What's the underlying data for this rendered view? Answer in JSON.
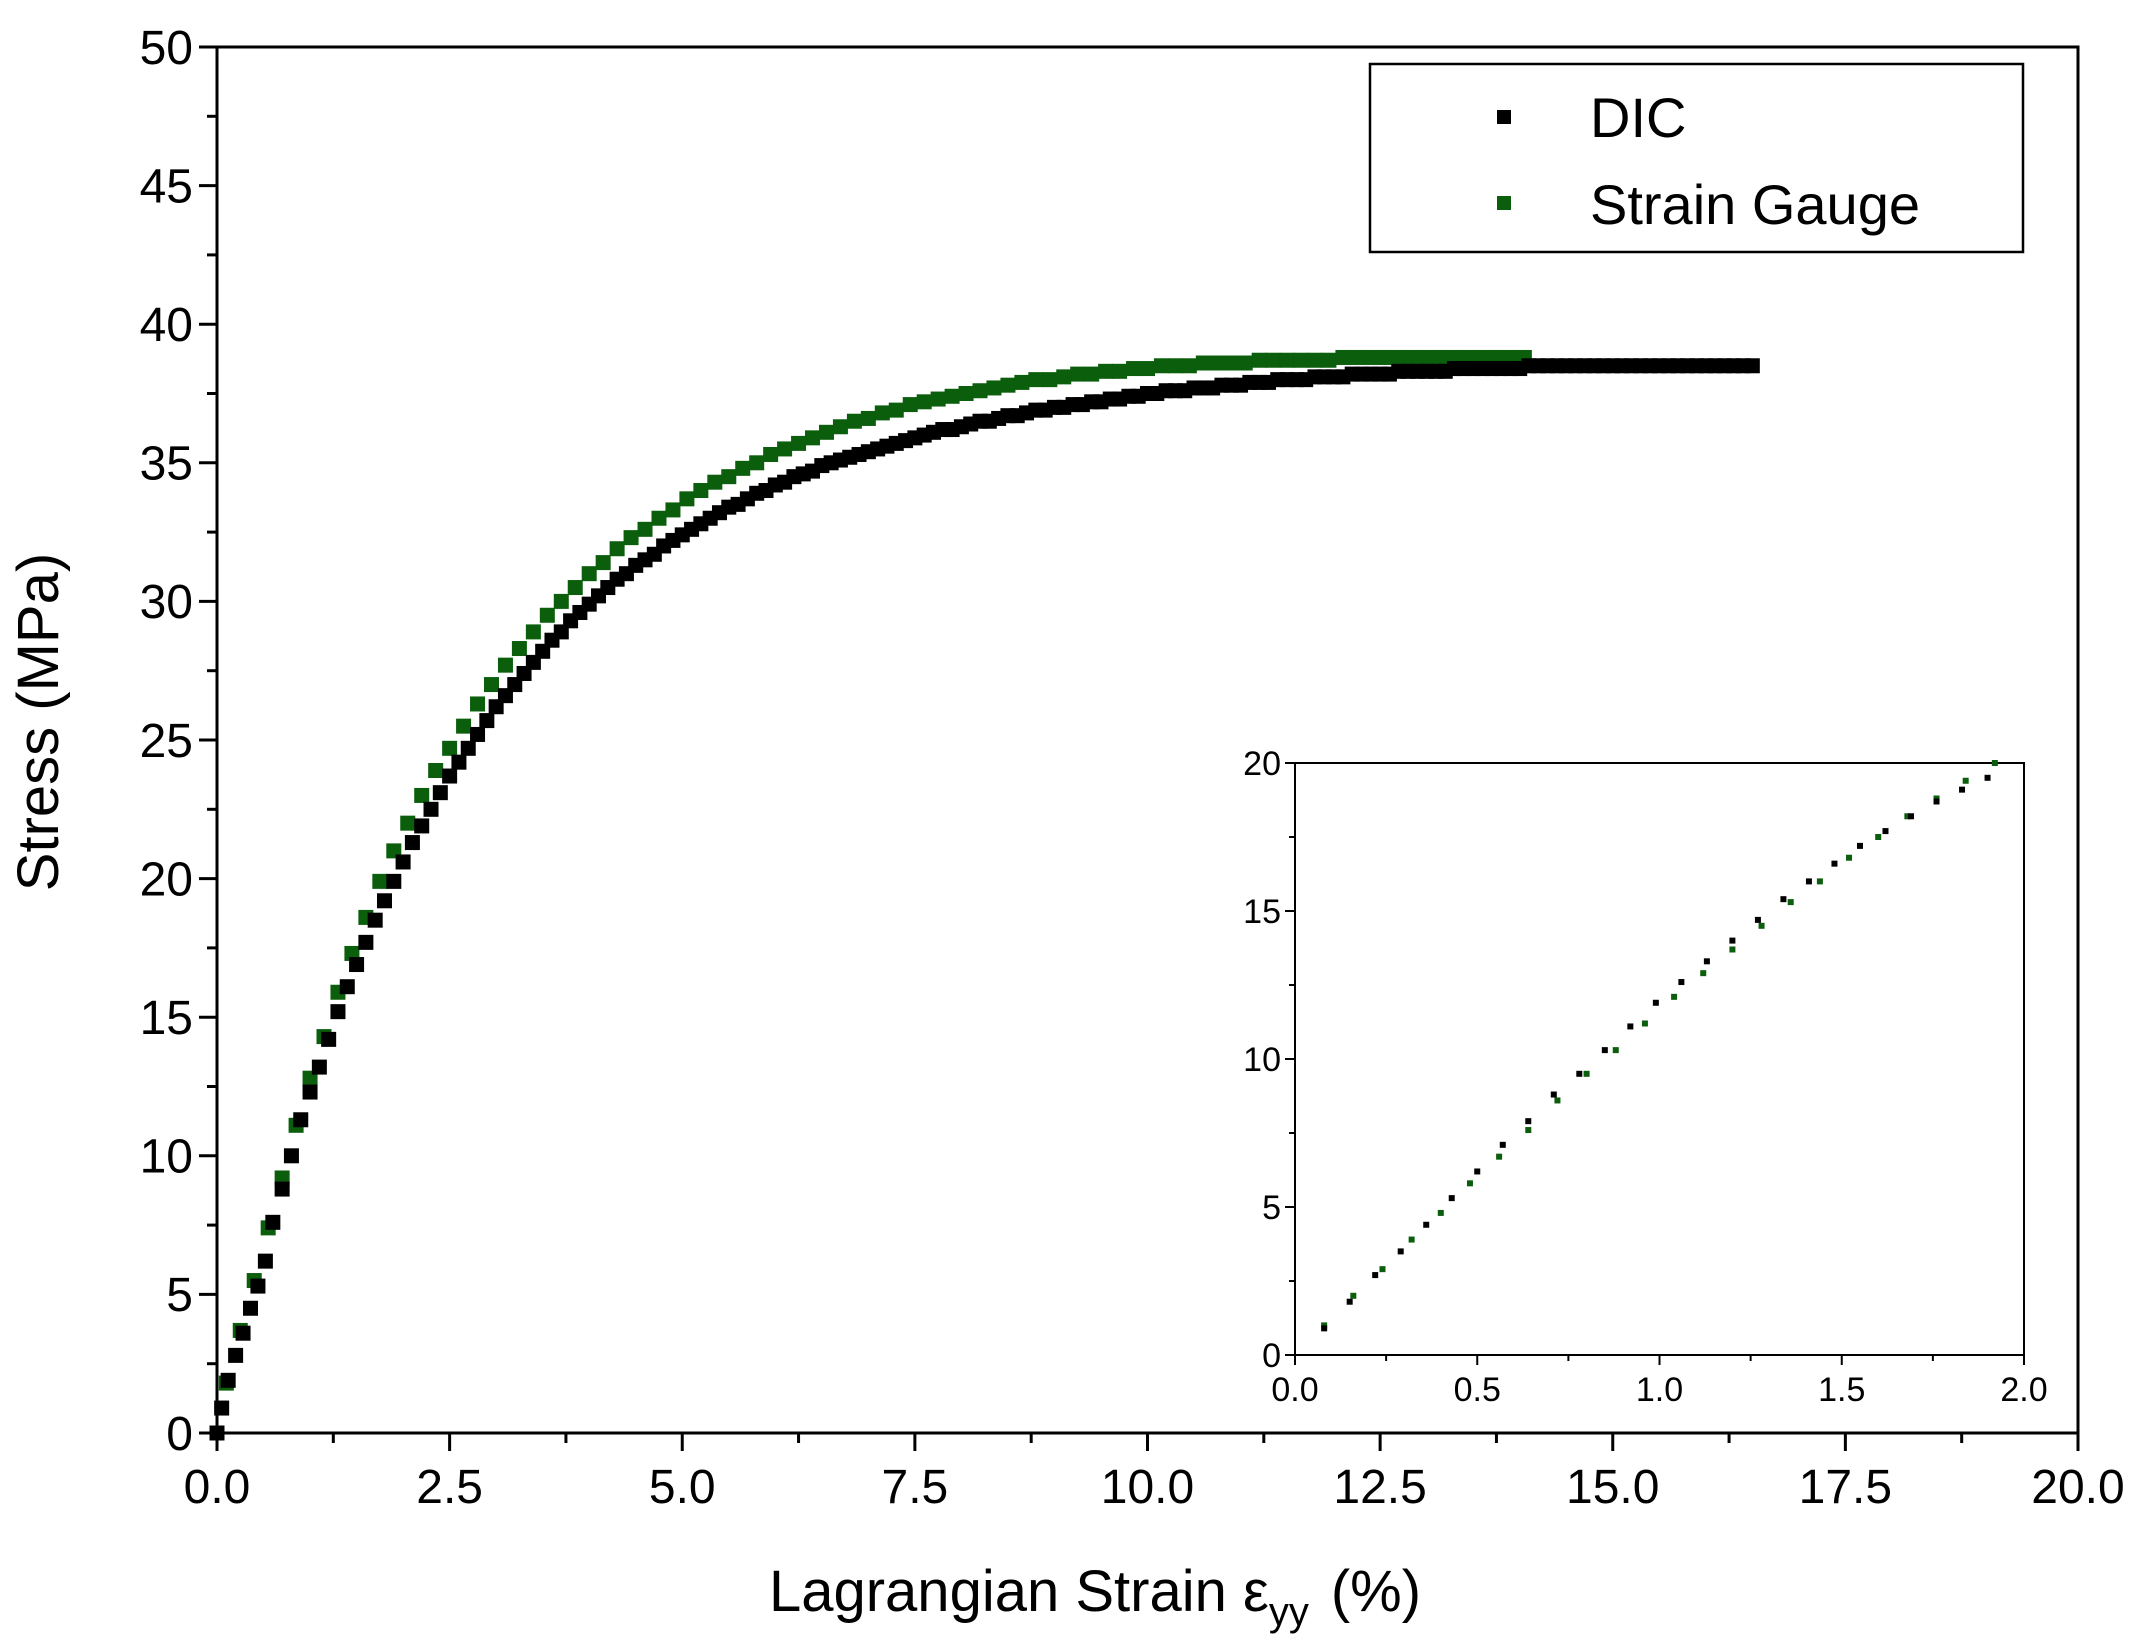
{
  "chart_data": {
    "type": "scatter",
    "xlabel": "Lagrangian Strain ε",
    "xlabel_subscript": "yy",
    "xlabel_unit": "(%)",
    "ylabel": "Stress (MPa)",
    "xlim": [
      0,
      20
    ],
    "ylim": [
      0,
      50
    ],
    "x_ticks": [
      "0.0",
      "2.5",
      "5.0",
      "7.5",
      "10.0",
      "12.5",
      "15.0",
      "17.5",
      "20.0"
    ],
    "y_ticks": [
      "0",
      "5",
      "10",
      "15",
      "20",
      "25",
      "30",
      "35",
      "40",
      "45",
      "50"
    ],
    "grid": false,
    "legend_placement": "top-right",
    "series": [
      {
        "name": "DIC",
        "color": "#000000",
        "x": [
          0.0,
          0.05,
          0.12,
          0.2,
          0.28,
          0.36,
          0.44,
          0.52,
          0.6,
          0.7,
          0.8,
          0.9,
          1.0,
          1.1,
          1.2,
          1.3,
          1.4,
          1.5,
          1.6,
          1.7,
          1.8,
          1.9,
          2.0,
          2.1,
          2.2,
          2.3,
          2.4,
          2.5,
          2.6,
          2.7,
          2.8,
          2.9,
          3.0,
          3.1,
          3.2,
          3.3,
          3.4,
          3.5,
          3.6,
          3.7,
          3.8,
          3.9,
          4.0,
          4.1,
          4.2,
          4.3,
          4.4,
          4.5,
          4.6,
          4.7,
          4.8,
          4.9,
          5.0,
          5.1,
          5.2,
          5.3,
          5.4,
          5.5,
          5.6,
          5.7,
          5.8,
          5.9,
          6.0,
          6.1,
          6.2,
          6.3,
          6.4,
          6.5,
          6.6,
          6.7,
          6.8,
          6.9,
          7.0,
          7.1,
          7.2,
          7.3,
          7.4,
          7.5,
          7.6,
          7.7,
          7.8,
          7.9,
          8.0,
          8.1,
          8.2,
          8.3,
          8.4,
          8.5,
          8.6,
          8.7,
          8.8,
          8.9,
          9.0,
          9.1,
          9.2,
          9.3,
          9.4,
          9.5,
          9.6,
          9.7,
          9.8,
          9.9,
          10.0,
          10.1,
          10.2,
          10.3,
          10.4,
          10.5,
          10.6,
          10.7,
          10.8,
          10.9,
          11.0,
          11.1,
          11.2,
          11.3,
          11.4,
          11.5,
          11.6,
          11.7,
          11.8,
          11.9,
          12.0,
          12.1,
          12.2,
          12.3,
          12.4,
          12.5,
          12.6,
          12.7,
          12.8,
          12.9,
          13.0,
          13.1,
          13.2,
          13.3,
          13.4,
          13.5,
          13.6,
          13.7,
          13.8,
          13.9,
          14.0,
          14.1,
          14.2,
          14.3,
          14.4,
          14.5,
          14.6,
          14.7,
          14.8,
          14.9,
          15.0,
          15.1,
          15.2,
          15.3,
          15.4,
          15.5,
          15.6,
          15.7,
          15.8,
          15.9,
          16.0,
          16.1,
          16.2,
          16.3,
          16.4,
          16.5
        ],
        "y": [
          0.0,
          0.9,
          1.9,
          2.8,
          3.6,
          4.5,
          5.3,
          6.2,
          7.6,
          8.8,
          10.0,
          11.3,
          12.3,
          13.2,
          14.2,
          15.2,
          16.1,
          16.9,
          17.7,
          18.5,
          19.2,
          19.9,
          20.6,
          21.3,
          21.9,
          22.5,
          23.1,
          23.7,
          24.2,
          24.7,
          25.2,
          25.7,
          26.2,
          26.6,
          27.0,
          27.4,
          27.8,
          28.2,
          28.6,
          28.9,
          29.3,
          29.6,
          29.9,
          30.2,
          30.5,
          30.8,
          31.0,
          31.3,
          31.5,
          31.7,
          32.0,
          32.2,
          32.4,
          32.6,
          32.8,
          33.0,
          33.2,
          33.4,
          33.5,
          33.7,
          33.9,
          34.0,
          34.2,
          34.3,
          34.5,
          34.6,
          34.7,
          34.9,
          35.0,
          35.1,
          35.2,
          35.3,
          35.4,
          35.5,
          35.6,
          35.7,
          35.8,
          35.9,
          36.0,
          36.1,
          36.2,
          36.2,
          36.3,
          36.4,
          36.5,
          36.5,
          36.6,
          36.7,
          36.7,
          36.8,
          36.9,
          36.9,
          37.0,
          37.0,
          37.1,
          37.1,
          37.2,
          37.2,
          37.3,
          37.3,
          37.4,
          37.4,
          37.5,
          37.5,
          37.6,
          37.6,
          37.6,
          37.7,
          37.7,
          37.7,
          37.8,
          37.8,
          37.8,
          37.9,
          37.9,
          37.9,
          38.0,
          38.0,
          38.0,
          38.0,
          38.1,
          38.1,
          38.1,
          38.1,
          38.2,
          38.2,
          38.2,
          38.2,
          38.2,
          38.3,
          38.3,
          38.3,
          38.3,
          38.3,
          38.3,
          38.4,
          38.4,
          38.4,
          38.4,
          38.4,
          38.4,
          38.4,
          38.4,
          38.5,
          38.5,
          38.5,
          38.5,
          38.5,
          38.5,
          38.5,
          38.5,
          38.5,
          38.5,
          38.5,
          38.5,
          38.5,
          38.5,
          38.5,
          38.5,
          38.5,
          38.5,
          38.5,
          38.5,
          38.5,
          38.5,
          38.5,
          38.5,
          38.5
        ]
      },
      {
        "name": "Strain Gauge",
        "color": "#0b5e0b",
        "x": [
          0.0,
          0.1,
          0.25,
          0.4,
          0.55,
          0.7,
          0.85,
          1.0,
          1.15,
          1.3,
          1.45,
          1.6,
          1.75,
          1.9,
          2.05,
          2.2,
          2.35,
          2.5,
          2.65,
          2.8,
          2.95,
          3.1,
          3.25,
          3.4,
          3.55,
          3.7,
          3.85,
          4.0,
          4.15,
          4.3,
          4.45,
          4.6,
          4.75,
          4.9,
          5.05,
          5.2,
          5.35,
          5.5,
          5.65,
          5.8,
          5.95,
          6.1,
          6.25,
          6.4,
          6.55,
          6.7,
          6.85,
          7.0,
          7.15,
          7.3,
          7.45,
          7.6,
          7.75,
          7.9,
          8.05,
          8.2,
          8.35,
          8.5,
          8.65,
          8.8,
          8.95,
          9.1,
          9.25,
          9.4,
          9.55,
          9.7,
          9.85,
          10.0,
          10.15,
          10.3,
          10.45,
          10.6,
          10.75,
          10.9,
          11.05,
          11.2,
          11.35,
          11.5,
          11.65,
          11.8,
          11.95,
          12.1,
          12.25,
          12.4,
          12.55,
          12.7,
          12.85,
          13.0,
          13.15,
          13.3,
          13.45,
          13.6,
          13.75,
          13.9,
          14.05
        ],
        "y": [
          0.0,
          1.8,
          3.7,
          5.5,
          7.4,
          9.2,
          11.1,
          12.8,
          14.3,
          15.9,
          17.3,
          18.6,
          19.9,
          21.0,
          22.0,
          23.0,
          23.9,
          24.7,
          25.5,
          26.3,
          27.0,
          27.7,
          28.3,
          28.9,
          29.5,
          30.0,
          30.5,
          31.0,
          31.4,
          31.9,
          32.3,
          32.6,
          33.0,
          33.3,
          33.7,
          34.0,
          34.3,
          34.5,
          34.8,
          35.0,
          35.3,
          35.5,
          35.7,
          35.9,
          36.1,
          36.3,
          36.5,
          36.6,
          36.8,
          36.9,
          37.1,
          37.2,
          37.3,
          37.4,
          37.5,
          37.6,
          37.7,
          37.8,
          37.9,
          38.0,
          38.0,
          38.1,
          38.2,
          38.2,
          38.3,
          38.3,
          38.4,
          38.4,
          38.5,
          38.5,
          38.5,
          38.6,
          38.6,
          38.6,
          38.6,
          38.7,
          38.7,
          38.7,
          38.7,
          38.7,
          38.7,
          38.8,
          38.8,
          38.8,
          38.8,
          38.8,
          38.8,
          38.8,
          38.8,
          38.8,
          38.8,
          38.8,
          38.8,
          38.8,
          38.8
        ]
      }
    ],
    "inset": {
      "xlim": [
        0,
        2.0
      ],
      "ylim": [
        0,
        20
      ],
      "x_ticks": [
        "0.0",
        "0.5",
        "1.0",
        "1.5",
        "2.0"
      ],
      "y_ticks": [
        "0",
        "5",
        "10",
        "15",
        "20"
      ],
      "series": [
        {
          "name": "DIC",
          "color": "#000000",
          "x": [
            0.08,
            0.15,
            0.22,
            0.29,
            0.36,
            0.43,
            0.5,
            0.57,
            0.64,
            0.71,
            0.78,
            0.85,
            0.92,
            0.99,
            1.06,
            1.13,
            1.2,
            1.27,
            1.34,
            1.41,
            1.48,
            1.55,
            1.62,
            1.69,
            1.76,
            1.83,
            1.9
          ],
          "y": [
            0.9,
            1.8,
            2.7,
            3.5,
            4.4,
            5.3,
            6.2,
            7.1,
            7.9,
            8.8,
            9.5,
            10.3,
            11.1,
            11.9,
            12.6,
            13.3,
            14.0,
            14.7,
            15.4,
            16.0,
            16.6,
            17.2,
            17.7,
            18.2,
            18.7,
            19.1,
            19.5
          ]
        },
        {
          "name": "Strain Gauge",
          "color": "#0b5e0b",
          "x": [
            0.08,
            0.16,
            0.24,
            0.32,
            0.4,
            0.48,
            0.56,
            0.64,
            0.72,
            0.8,
            0.88,
            0.96,
            1.04,
            1.12,
            1.2,
            1.28,
            1.36,
            1.44,
            1.52,
            1.6,
            1.68,
            1.76,
            1.84,
            1.92
          ],
          "y": [
            1.0,
            2.0,
            2.9,
            3.9,
            4.8,
            5.8,
            6.7,
            7.6,
            8.6,
            9.5,
            10.3,
            11.2,
            12.1,
            12.9,
            13.7,
            14.5,
            15.3,
            16.0,
            16.8,
            17.5,
            18.2,
            18.8,
            19.4,
            20.0
          ]
        }
      ]
    }
  }
}
